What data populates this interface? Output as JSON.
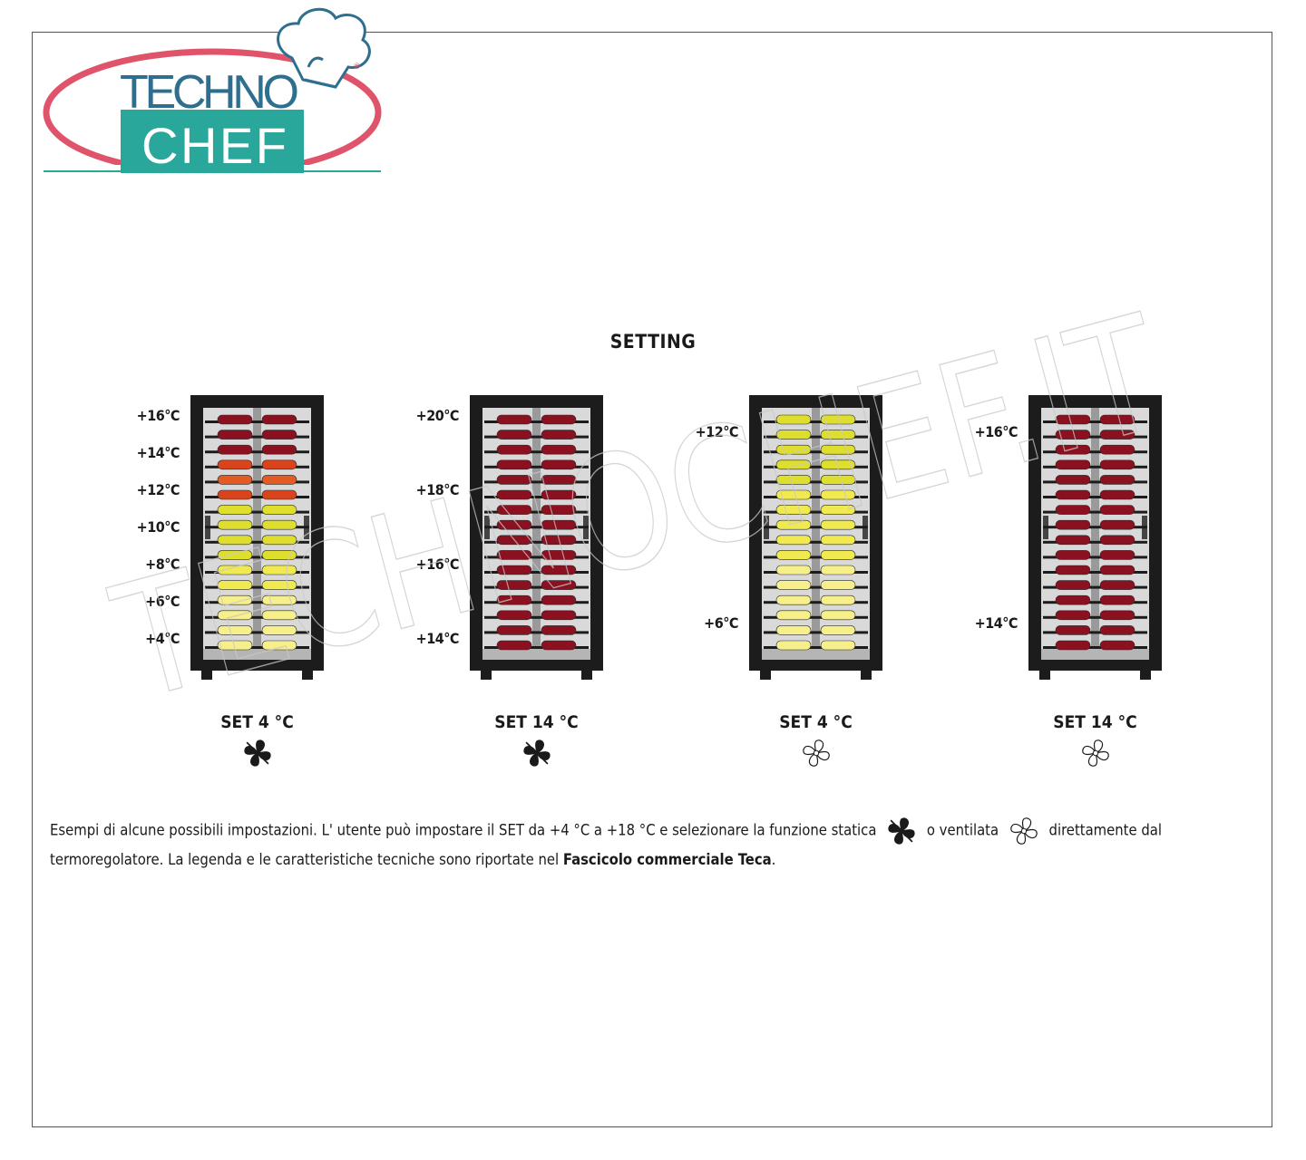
{
  "logo": {
    "line1": "TECHNO",
    "line2": "CHEF",
    "registered": "®",
    "colors": {
      "ring": "#e0546b",
      "teal": "#2aa79b",
      "text_blue": "#2e6f8f"
    }
  },
  "watermark": "TECHNOCHEF.IT",
  "title": "SETTING",
  "colors": {
    "frame": "#1c1c1c",
    "interior": "#d9d9d9",
    "red_wine": "#8b1020",
    "orange": "#d9441c",
    "orange2": "#e35a22",
    "yellow": "#dede2e",
    "yellow2": "#f0ea50",
    "pale_yellow": "#f6ef8c"
  },
  "units": [
    {
      "set_label": "SET 4 °C",
      "fan": "static-fan-icon",
      "temp_labels": [
        "+16°C",
        "+14°C",
        "+12°C",
        "+10°C",
        "+8°C",
        "+6°C",
        "+4°C"
      ],
      "bottle_rows": [
        "red_wine",
        "red_wine",
        "red_wine",
        "orange",
        "orange2",
        "orange",
        "yellow",
        "yellow",
        "yellow",
        "yellow",
        "yellow2",
        "yellow2",
        "pale_yellow",
        "pale_yellow",
        "pale_yellow",
        "pale_yellow"
      ]
    },
    {
      "set_label": "SET 14 °C",
      "fan": "static-fan-icon",
      "temp_labels": [
        "+20°C",
        "+18°C",
        "+16°C",
        "+14°C"
      ],
      "bottle_rows": [
        "red_wine",
        "red_wine",
        "red_wine",
        "red_wine",
        "red_wine",
        "red_wine",
        "red_wine",
        "red_wine",
        "red_wine",
        "red_wine",
        "red_wine",
        "red_wine",
        "red_wine",
        "red_wine",
        "red_wine",
        "red_wine"
      ]
    },
    {
      "set_label": "SET 4 °C",
      "fan": "ventilated-fan-icon",
      "temp_labels": [
        "+12°C",
        "+6°C"
      ],
      "bottle_rows": [
        "yellow",
        "yellow",
        "yellow",
        "yellow",
        "yellow",
        "yellow2",
        "yellow2",
        "yellow2",
        "yellow2",
        "yellow2",
        "pale_yellow",
        "pale_yellow",
        "pale_yellow",
        "pale_yellow",
        "pale_yellow",
        "pale_yellow"
      ]
    },
    {
      "set_label": "SET 14 °C",
      "fan": "ventilated-fan-icon",
      "temp_labels": [
        "+16°C",
        "+14°C"
      ],
      "bottle_rows": [
        "red_wine",
        "red_wine",
        "red_wine",
        "red_wine",
        "red_wine",
        "red_wine",
        "red_wine",
        "red_wine",
        "red_wine",
        "red_wine",
        "red_wine",
        "red_wine",
        "red_wine",
        "red_wine",
        "red_wine",
        "red_wine"
      ]
    }
  ],
  "caption": {
    "part1": "Esempi di alcune possibili impostazioni. L' utente può impostare il SET da  +4 °C a  +18 °C  e selezionare la funzione statica",
    "part2": "o ventilata",
    "part3": "direttamente dal termoregolatore. La legenda e le caratteristiche tecniche sono riportate nel",
    "bold": "Fascicolo commerciale Teca",
    "end": "."
  }
}
